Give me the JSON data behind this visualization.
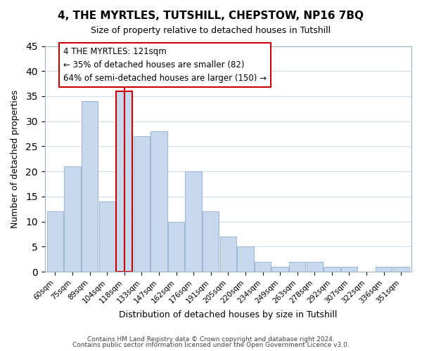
{
  "title1": "4, THE MYRTLES, TUTSHILL, CHEPSTOW, NP16 7BQ",
  "title2": "Size of property relative to detached houses in Tutshill",
  "xlabel": "Distribution of detached houses by size in Tutshill",
  "ylabel": "Number of detached properties",
  "bar_labels": [
    "60sqm",
    "75sqm",
    "89sqm",
    "104sqm",
    "118sqm",
    "133sqm",
    "147sqm",
    "162sqm",
    "176sqm",
    "191sqm",
    "205sqm",
    "220sqm",
    "234sqm",
    "249sqm",
    "263sqm",
    "278sqm",
    "292sqm",
    "307sqm",
    "322sqm",
    "336sqm",
    "351sqm"
  ],
  "bar_values": [
    12,
    21,
    34,
    14,
    36,
    27,
    28,
    10,
    20,
    12,
    7,
    5,
    2,
    1,
    2,
    2,
    1,
    1,
    0,
    1,
    1
  ],
  "bar_color": "#c8d9ed",
  "bar_edge_color": "#a0b8d8",
  "highlight_bar_index": 4,
  "highlight_bar_edge_color": "#cc0000",
  "vline_x": 4,
  "vline_color": "#cc0000",
  "ylim": [
    0,
    45
  ],
  "yticks": [
    0,
    5,
    10,
    15,
    20,
    25,
    30,
    35,
    40,
    45
  ],
  "annotation_title": "4 THE MYRTLES: 121sqm",
  "annotation_line1": "← 35% of detached houses are smaller (82)",
  "annotation_line2": "64% of semi-detached houses are larger (150) →",
  "annotation_box_edge": "#cc0000",
  "footer_line1": "Contains HM Land Registry data © Crown copyright and database right 2024.",
  "footer_line2": "Contains public sector information licensed under the Open Government Licence v3.0.",
  "background_color": "#ffffff",
  "grid_color": "#d0dce8"
}
